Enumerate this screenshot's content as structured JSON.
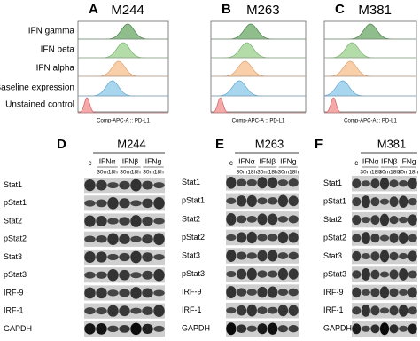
{
  "flow": {
    "row_labels": [
      "IFN gamma",
      "IFN beta",
      "IFN alpha",
      "Baseline expression",
      "Unstained control"
    ],
    "x_label": "Comp-APC-A :: PD-L1",
    "panels": [
      {
        "letter": "A",
        "title": "M244"
      },
      {
        "letter": "B",
        "title": "M263"
      },
      {
        "letter": "C",
        "title": "M381"
      }
    ]
  },
  "blots": {
    "panels": [
      {
        "letter": "D",
        "title": "M244",
        "control": "c",
        "treatments": [
          "IFNα",
          "IFNβ",
          "IFNg"
        ],
        "time_labels": [
          "30m18h",
          "30m18h",
          "30m18h"
        ],
        "rows": [
          "Stat1",
          "pStat1",
          "Stat2",
          "pStat2",
          "Stat3",
          "pStat3",
          "IRF-9",
          "IRF-1",
          "GAPDH"
        ]
      },
      {
        "letter": "E",
        "title": "M263",
        "control": "c",
        "treatments": [
          "IFNα",
          "IFNβ",
          "IFNg"
        ],
        "time_labels": [
          "30m18h",
          "30m18h",
          "30m18h"
        ],
        "rows": [
          "Stat1",
          "pStat1",
          "Stat2",
          "pStat2",
          "Stat3",
          "pStat3",
          "IRF-9",
          "IRF-1",
          "GAPDH"
        ]
      },
      {
        "letter": "F",
        "title": "M381",
        "control": "c",
        "treatments": [
          "IFNα",
          "IFNβ",
          "IFNg"
        ],
        "time_labels": [
          "30m18h",
          "30m18h",
          "30m18h"
        ],
        "rows": [
          "Stat1",
          "pStat1",
          "Stat2",
          "pStat2",
          "Stat3",
          "pStat3",
          "IRF-9",
          "IRF-1",
          "GAPDH"
        ]
      }
    ]
  }
}
